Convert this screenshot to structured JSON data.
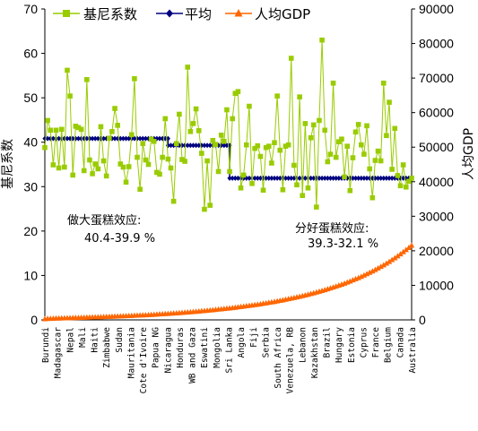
{
  "chart_data": {
    "type": "line",
    "legend": [
      {
        "name": "基尼系数",
        "color": "#99cc00",
        "marker": "square"
      },
      {
        "name": "平均",
        "color": "#000080",
        "marker": "diamond"
      },
      {
        "name": "人均GDP",
        "color": "#ff6600",
        "marker": "triangle"
      }
    ],
    "ylabel": "基尼系数",
    "y2label": "人均GDP",
    "ylim": [
      0,
      70
    ],
    "y2lim": [
      0,
      90000
    ],
    "yticks": [
      "0",
      "10",
      "20",
      "30",
      "40",
      "50",
      "60",
      "70"
    ],
    "y2ticks": [
      "0",
      "10000",
      "20000",
      "30000",
      "40000",
      "50000",
      "60000",
      "70000",
      "80000",
      "90000"
    ],
    "categories": [
      "Burundi",
      "Madagascar",
      "Nepal",
      "Mali",
      "Haiti",
      "Zimbabwe",
      "Sudan",
      "Mauritania",
      "Cote d'Ivoire",
      "Papua NG",
      "Nicaragua",
      "Honduras",
      "WB and Gaza",
      "Eswatini",
      "Mongolia",
      "Sri Lanka",
      "Angola",
      "Fiji",
      "Serbia",
      "South Africa",
      "Venezuela, RB",
      "Lebanon",
      "Kazakhstan",
      "Brazil",
      "Hungary",
      "Estonia",
      "Cyprus",
      "France",
      "Belgium",
      "Canada",
      "Australia"
    ],
    "n_points": 132,
    "gini_values": [
      38.8,
      44.9,
      42.7,
      34.9,
      42.7,
      34.2,
      42.9,
      34.4,
      56.2,
      50.4,
      32.6,
      43.6,
      43.3,
      42.9,
      33.6,
      54.1,
      36.0,
      32.9,
      35.1,
      34.0,
      43.5,
      35.8,
      32.4,
      40.9,
      42.4,
      47.6,
      43.8,
      35.1,
      34.4,
      31.0,
      34.5,
      41.7,
      54.3,
      36.6,
      29.4,
      39.7,
      36.0,
      35.0,
      40.7,
      40.2,
      33.2,
      32.8,
      36.6,
      45.3,
      36.2,
      34.2,
      26.7,
      39.7,
      46.3,
      36.1,
      35.7,
      56.9,
      42.4,
      44.2,
      47.5,
      42.6,
      37.5,
      24.9,
      35.8,
      25.8,
      40.4,
      39.5,
      33.4,
      41.6,
      40.2,
      47.3,
      33.4,
      45.3,
      51.0,
      51.4,
      29.7,
      32.6,
      39.4,
      48.1,
      30.7,
      38.6,
      39.2,
      36.8,
      29.2,
      38.8,
      39.1,
      35.3,
      39.9,
      50.4,
      38.2,
      29.3,
      39.1,
      39.4,
      58.9,
      34.8,
      30.4,
      50.2,
      28.0,
      44.2,
      29.7,
      41.0,
      43.9,
      25.4,
      44.9,
      63.0,
      42.7,
      35.6,
      37.3,
      53.3,
      36.6,
      40.1,
      40.7,
      32.2,
      39.1,
      29.1,
      36.5,
      42.3,
      44.0,
      39.4,
      37.3,
      43.7,
      34.0,
      27.5,
      35.9,
      38.0,
      35.8,
      53.3,
      41.5,
      49.0,
      33.9,
      43.1,
      32.5,
      30.2,
      34.9,
      29.9,
      31.2,
      31.9
    ],
    "gdp_values": [
      270,
      341,
      372,
      396,
      443,
      470,
      486,
      507,
      528,
      557,
      578,
      602,
      624,
      652,
      683,
      700,
      736,
      768,
      789,
      818,
      853,
      889,
      912,
      941,
      980,
      1010,
      1044,
      1072,
      1102,
      1149,
      1175,
      1208,
      1250,
      1283,
      1331,
      1367,
      1409,
      1442,
      1486,
      1538,
      1585,
      1640,
      1686,
      1740,
      1784,
      1844,
      1900,
      1960,
      2023,
      2081,
      2138,
      2204,
      2270,
      2336,
      2415,
      2479,
      2552,
      2629,
      2707,
      2786,
      2863,
      2943,
      3033,
      3114,
      3205,
      3297,
      3382,
      3480,
      3578,
      3684,
      3790,
      3889,
      4008,
      4110,
      4221,
      4346,
      4456,
      4581,
      4719,
      4845,
      4985,
      5123,
      5268,
      5420,
      5569,
      5721,
      5885,
      6049,
      6219,
      6395,
      6577,
      6755,
      6950,
      7136,
      7341,
      7542,
      7751,
      7975,
      8193,
      8431,
      8666,
      8910,
      9167,
      9425,
      9696,
      9975,
      10260,
      10541,
      10859,
      11167,
      11496,
      11821,
      12171,
      12529,
      12903,
      13277,
      13675,
      14082,
      14502,
      14940,
      15384,
      15855,
      16339,
      16839,
      17362,
      17889,
      18459,
      19034,
      19634,
      20258,
      20895,
      21566
    ],
    "average_values": [
      52500,
      50500,
      41000
    ],
    "average_breaks": [
      0,
      44,
      66,
      132
    ],
    "annotations": [
      {
        "line1": "做大蛋糕效应:",
        "line2": "40.4-39.9 %"
      },
      {
        "line1": "分好蛋糕效应:",
        "line2": "39.3-32.1 %"
      }
    ],
    "grid": false,
    "legend_position": "top"
  }
}
